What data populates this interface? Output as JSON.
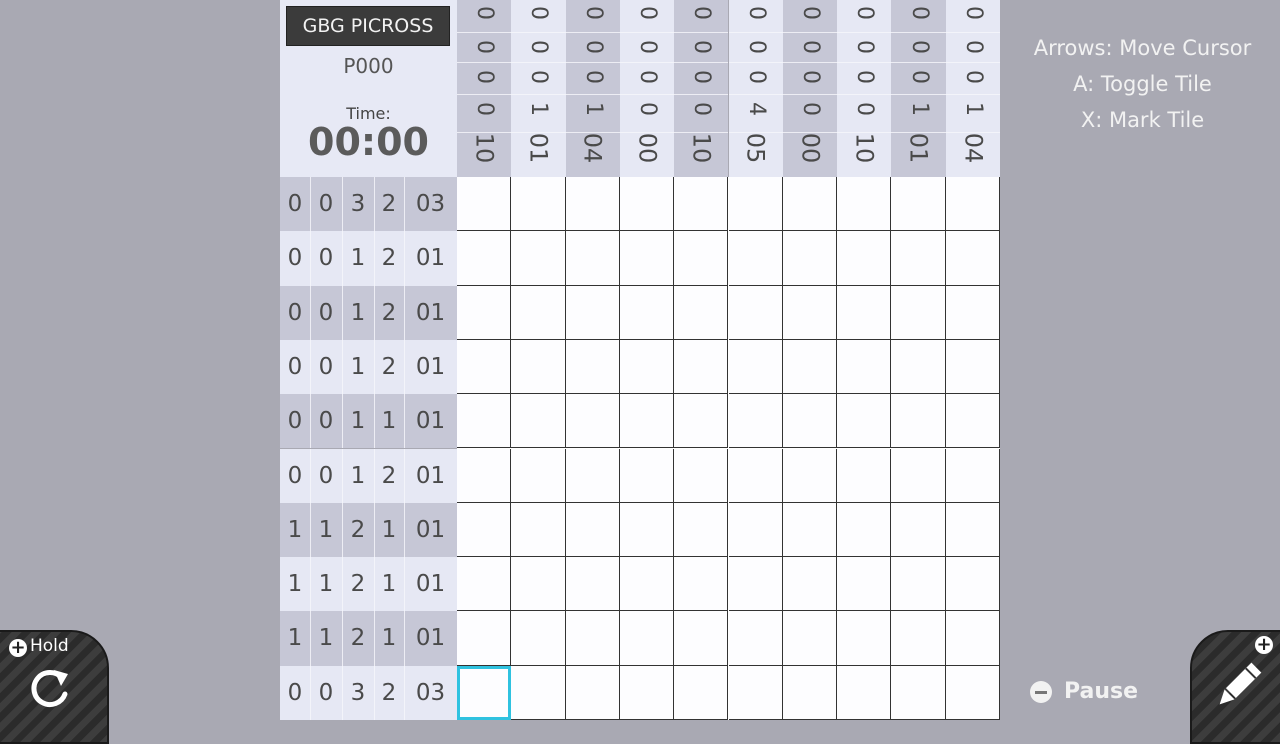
{
  "header": {
    "title": "GBG PICROSS",
    "puzzle_id": "P000",
    "time_label": "Time:",
    "time_value": "00:00"
  },
  "column_clues": [
    [
      "0",
      "0",
      "0",
      "0",
      "10"
    ],
    [
      "0",
      "0",
      "0",
      "1",
      "01"
    ],
    [
      "0",
      "0",
      "0",
      "1",
      "04"
    ],
    [
      "0",
      "0",
      "0",
      "0",
      "00"
    ],
    [
      "0",
      "0",
      "0",
      "0",
      "10"
    ],
    [
      "0",
      "0",
      "0",
      "4",
      "05"
    ],
    [
      "0",
      "0",
      "0",
      "0",
      "00"
    ],
    [
      "0",
      "0",
      "0",
      "0",
      "10"
    ],
    [
      "0",
      "0",
      "0",
      "1",
      "01"
    ],
    [
      "0",
      "0",
      "0",
      "1",
      "04"
    ]
  ],
  "row_clues": [
    [
      "0",
      "0",
      "3",
      "2",
      "03"
    ],
    [
      "0",
      "0",
      "1",
      "2",
      "01"
    ],
    [
      "0",
      "0",
      "1",
      "2",
      "01"
    ],
    [
      "0",
      "0",
      "1",
      "2",
      "01"
    ],
    [
      "0",
      "0",
      "1",
      "1",
      "01"
    ],
    [
      "0",
      "0",
      "1",
      "2",
      "01"
    ],
    [
      "1",
      "1",
      "2",
      "1",
      "01"
    ],
    [
      "1",
      "1",
      "2",
      "1",
      "01"
    ],
    [
      "1",
      "1",
      "2",
      "1",
      "01"
    ],
    [
      "0",
      "0",
      "3",
      "2",
      "03"
    ]
  ],
  "grid": {
    "rows": 10,
    "cols": 10,
    "cursor_row": 9,
    "cursor_col": 0
  },
  "instructions": [
    "Arrows: Move Cursor",
    "A: Toggle Tile",
    "X: Mark Tile"
  ],
  "buttons": {
    "hold_label": "Hold",
    "pause_label": "Pause"
  },
  "icons": {
    "hold": "rotate-icon",
    "pause": "minus-icon",
    "edit": "pencil-icon",
    "plus": "plus-icon"
  },
  "colors": {
    "background": "#a9a9b3",
    "clue_dark": "#c6c7d6",
    "clue_light": "#e6e8f4",
    "cursor": "#2fc2e0"
  }
}
